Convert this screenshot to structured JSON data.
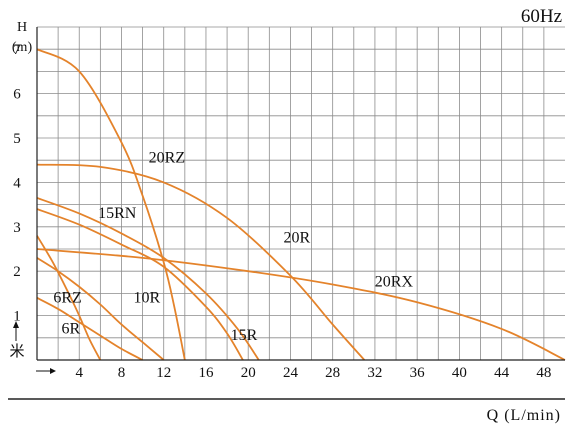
{
  "chart_data": {
    "type": "line",
    "title": "60Hz",
    "ylabel_top": "H",
    "ylabel_unit": "(m)",
    "xlabel": "Q (L/min)",
    "axis_marker": "米",
    "xlim": [
      0,
      50
    ],
    "ylim": [
      0,
      7.5
    ],
    "x_ticks": [
      4,
      8,
      12,
      16,
      20,
      24,
      28,
      32,
      36,
      40,
      44,
      48
    ],
    "y_ticks": [
      1,
      2,
      3,
      4,
      5,
      6,
      7
    ],
    "grid": true,
    "curve_color": "#e4832b",
    "series": [
      {
        "name": "20RZ",
        "x": [
          0,
          4,
          8,
          10,
          12,
          13,
          14
        ],
        "y": [
          7.0,
          6.5,
          4.9,
          3.7,
          2.2,
          1.2,
          0
        ]
      },
      {
        "name": "20R",
        "x": [
          0,
          6,
          12,
          18,
          24,
          28,
          31
        ],
        "y": [
          4.4,
          4.35,
          4.0,
          3.2,
          1.9,
          0.8,
          0
        ]
      },
      {
        "name": "20RX",
        "x": [
          0,
          10,
          20,
          28,
          36,
          44,
          50
        ],
        "y": [
          2.5,
          2.3,
          2.0,
          1.7,
          1.3,
          0.7,
          0
        ]
      },
      {
        "name": "15RN",
        "x": [
          0,
          4,
          8,
          12,
          16,
          19,
          21
        ],
        "y": [
          3.65,
          3.3,
          2.85,
          2.3,
          1.5,
          0.7,
          0
        ]
      },
      {
        "name": "15R",
        "x": [
          0,
          4,
          8,
          12,
          16,
          18,
          19.5
        ],
        "y": [
          3.4,
          3.05,
          2.6,
          2.1,
          1.2,
          0.6,
          0
        ]
      },
      {
        "name": "10R",
        "x": [
          0,
          2,
          4,
          6,
          8,
          10,
          12
        ],
        "y": [
          2.3,
          2.0,
          1.65,
          1.25,
          0.8,
          0.4,
          0
        ]
      },
      {
        "name": "6RZ",
        "x": [
          0,
          1.5,
          3,
          4,
          5,
          6
        ],
        "y": [
          2.8,
          2.2,
          1.5,
          1.0,
          0.45,
          0
        ]
      },
      {
        "name": "6R",
        "x": [
          0,
          2,
          4,
          6,
          8,
          10
        ],
        "y": [
          1.4,
          1.15,
          0.85,
          0.55,
          0.25,
          0
        ]
      }
    ]
  }
}
